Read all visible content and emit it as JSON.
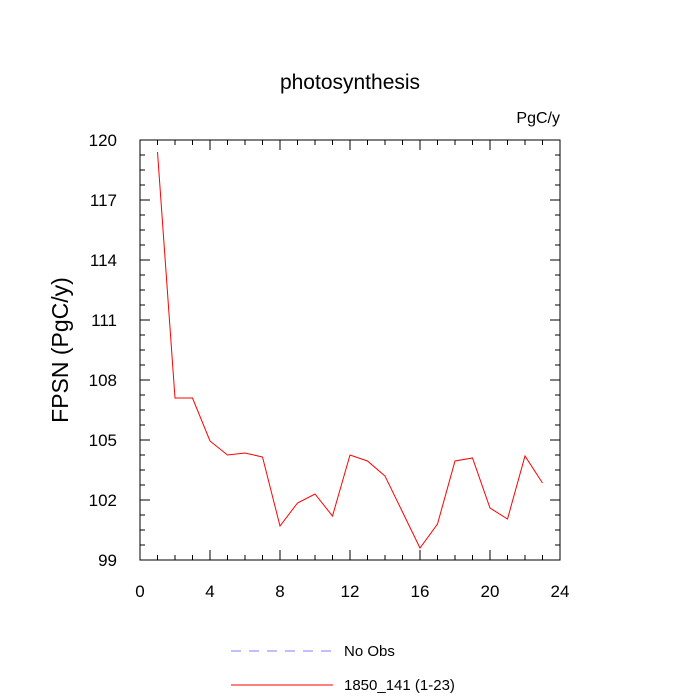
{
  "chart_data": {
    "type": "line",
    "title": "photosynthesis",
    "units_label": "PgC/y",
    "ylabel": "FPSN  (PgC/y)",
    "xlabel": "",
    "xlim": [
      0,
      24
    ],
    "ylim": [
      99,
      120
    ],
    "x_ticks": [
      0,
      4,
      8,
      12,
      16,
      20,
      24
    ],
    "y_ticks": [
      99,
      102,
      105,
      108,
      111,
      114,
      117,
      120
    ],
    "legend_position": "bottom",
    "series": [
      {
        "name": "1850_141 (1-23)",
        "color": "#ff0000",
        "dash": "solid",
        "x": [
          1,
          2,
          3,
          4,
          5,
          6,
          7,
          8,
          9,
          10,
          11,
          12,
          13,
          14,
          15,
          16,
          17,
          18,
          19,
          20,
          21,
          22,
          23
        ],
        "y": [
          119.4,
          107.1,
          107.1,
          104.95,
          104.25,
          104.35,
          104.15,
          100.7,
          101.85,
          102.3,
          101.2,
          104.25,
          103.95,
          103.2,
          101.4,
          99.6,
          100.8,
          103.95,
          104.1,
          101.6,
          101.05,
          104.2,
          102.85
        ]
      }
    ],
    "legend": [
      {
        "label": "No Obs",
        "color": "#8080ff",
        "dash": "dashed"
      },
      {
        "label": "1850_141 (1-23)",
        "color": "#ff0000",
        "dash": "solid"
      }
    ]
  }
}
